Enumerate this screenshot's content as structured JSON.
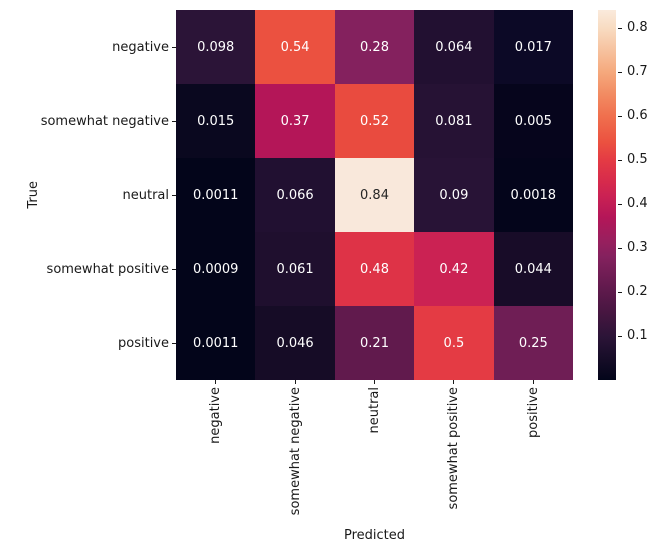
{
  "chart_data": {
    "type": "heatmap",
    "title": "",
    "xlabel": "Predicted",
    "ylabel": "True",
    "x_categories": [
      "negative",
      "somewhat negative",
      "neutral",
      "somewhat positive",
      "positive"
    ],
    "y_categories": [
      "negative",
      "somewhat negative",
      "neutral",
      "somewhat positive",
      "positive"
    ],
    "values": [
      [
        0.098,
        0.54,
        0.28,
        0.064,
        0.017
      ],
      [
        0.015,
        0.37,
        0.52,
        0.081,
        0.005
      ],
      [
        0.0011,
        0.066,
        0.84,
        0.09,
        0.0018
      ],
      [
        0.0009,
        0.061,
        0.48,
        0.42,
        0.044
      ],
      [
        0.0011,
        0.046,
        0.21,
        0.5,
        0.25
      ]
    ],
    "cell_labels": [
      [
        "0.098",
        "0.54",
        "0.28",
        "0.064",
        "0.017"
      ],
      [
        "0.015",
        "0.37",
        "0.52",
        "0.081",
        "0.005"
      ],
      [
        "0.0011",
        "0.066",
        "0.84",
        "0.09",
        "0.0018"
      ],
      [
        "0.0009",
        "0.061",
        "0.48",
        "0.42",
        "0.044"
      ],
      [
        "0.0011",
        "0.046",
        "0.21",
        "0.5",
        "0.25"
      ]
    ],
    "cell_colors": [
      [
        "#2b1437",
        "#eb5140",
        "#84215e",
        "#221031",
        "#0c0926"
      ],
      [
        "#0a081f",
        "#b41658",
        "#e94b3f",
        "#261234",
        "#06051c"
      ],
      [
        "#03051a",
        "#211031",
        "#f9e8db",
        "#281336",
        "#04051b"
      ],
      [
        "#03051a",
        "#1f0f2e",
        "#de3347",
        "#cb2253",
        "#180c28"
      ],
      [
        "#03051a",
        "#160c26",
        "#611a4d",
        "#e43b44",
        "#6f1e55"
      ]
    ],
    "annotation_text_colors": {
      "light": "#ffffff",
      "dark": "#262626"
    },
    "colormap": "rocket",
    "vmin": 0.0009,
    "vmax": 0.84,
    "grid": false,
    "legend_position": "right-colorbar",
    "colorbar": {
      "tick_labels": [
        "0.8",
        "0.7",
        "0.6",
        "0.5",
        "0.4",
        "0.3",
        "0.2",
        "0.1"
      ],
      "tick_values": [
        0.8,
        0.7,
        0.6,
        0.5,
        0.4,
        0.3,
        0.2,
        0.1
      ],
      "gradient_stops": [
        {
          "pos": 0.0,
          "color": "#faeadc"
        },
        {
          "pos": 4.8,
          "color": "#f8dcc2"
        },
        {
          "pos": 16.7,
          "color": "#f5a97d"
        },
        {
          "pos": 22.6,
          "color": "#f28c63"
        },
        {
          "pos": 28.6,
          "color": "#f0704e"
        },
        {
          "pos": 35.8,
          "color": "#eb5140"
        },
        {
          "pos": 40.5,
          "color": "#e43b44"
        },
        {
          "pos": 46.5,
          "color": "#d62a4c"
        },
        {
          "pos": 50.1,
          "color": "#cb2253"
        },
        {
          "pos": 56.0,
          "color": "#b41658"
        },
        {
          "pos": 62.0,
          "color": "#9a1f5e"
        },
        {
          "pos": 66.7,
          "color": "#84215e"
        },
        {
          "pos": 75.1,
          "color": "#611a4d"
        },
        {
          "pos": 82.2,
          "color": "#451640"
        },
        {
          "pos": 88.4,
          "color": "#2b1437"
        },
        {
          "pos": 94.1,
          "color": "#170d28"
        },
        {
          "pos": 100.0,
          "color": "#03051a"
        }
      ]
    }
  }
}
